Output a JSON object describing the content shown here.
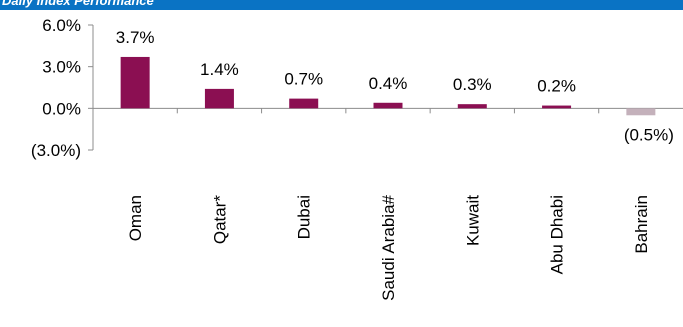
{
  "header": {
    "title": "Daily Index Performance"
  },
  "chart_data": {
    "type": "bar",
    "title": "Daily Index Performance",
    "categories": [
      "Oman",
      "Qatar*",
      "Dubai",
      "Saudi Arabia#",
      "Kuwait",
      "Abu Dhabi",
      "Bahrain"
    ],
    "values": [
      3.7,
      1.4,
      0.7,
      0.4,
      0.3,
      0.2,
      -0.5
    ],
    "data_labels": [
      "3.7%",
      "1.4%",
      "0.7%",
      "0.4%",
      "0.3%",
      "0.2%",
      "(0.5%)"
    ],
    "yticks": [
      6.0,
      3.0,
      0.0,
      -3.0
    ],
    "ytick_labels": [
      "6.0%",
      "3.0%",
      "0.0%",
      "(3.0%)"
    ],
    "ylim": [
      -3.0,
      6.0
    ],
    "xlabel": "",
    "ylabel": "",
    "grid": false,
    "colors": {
      "positive": "#8b0f52",
      "negative": "#c4b1bb",
      "axis": "#8c8c8c"
    }
  }
}
